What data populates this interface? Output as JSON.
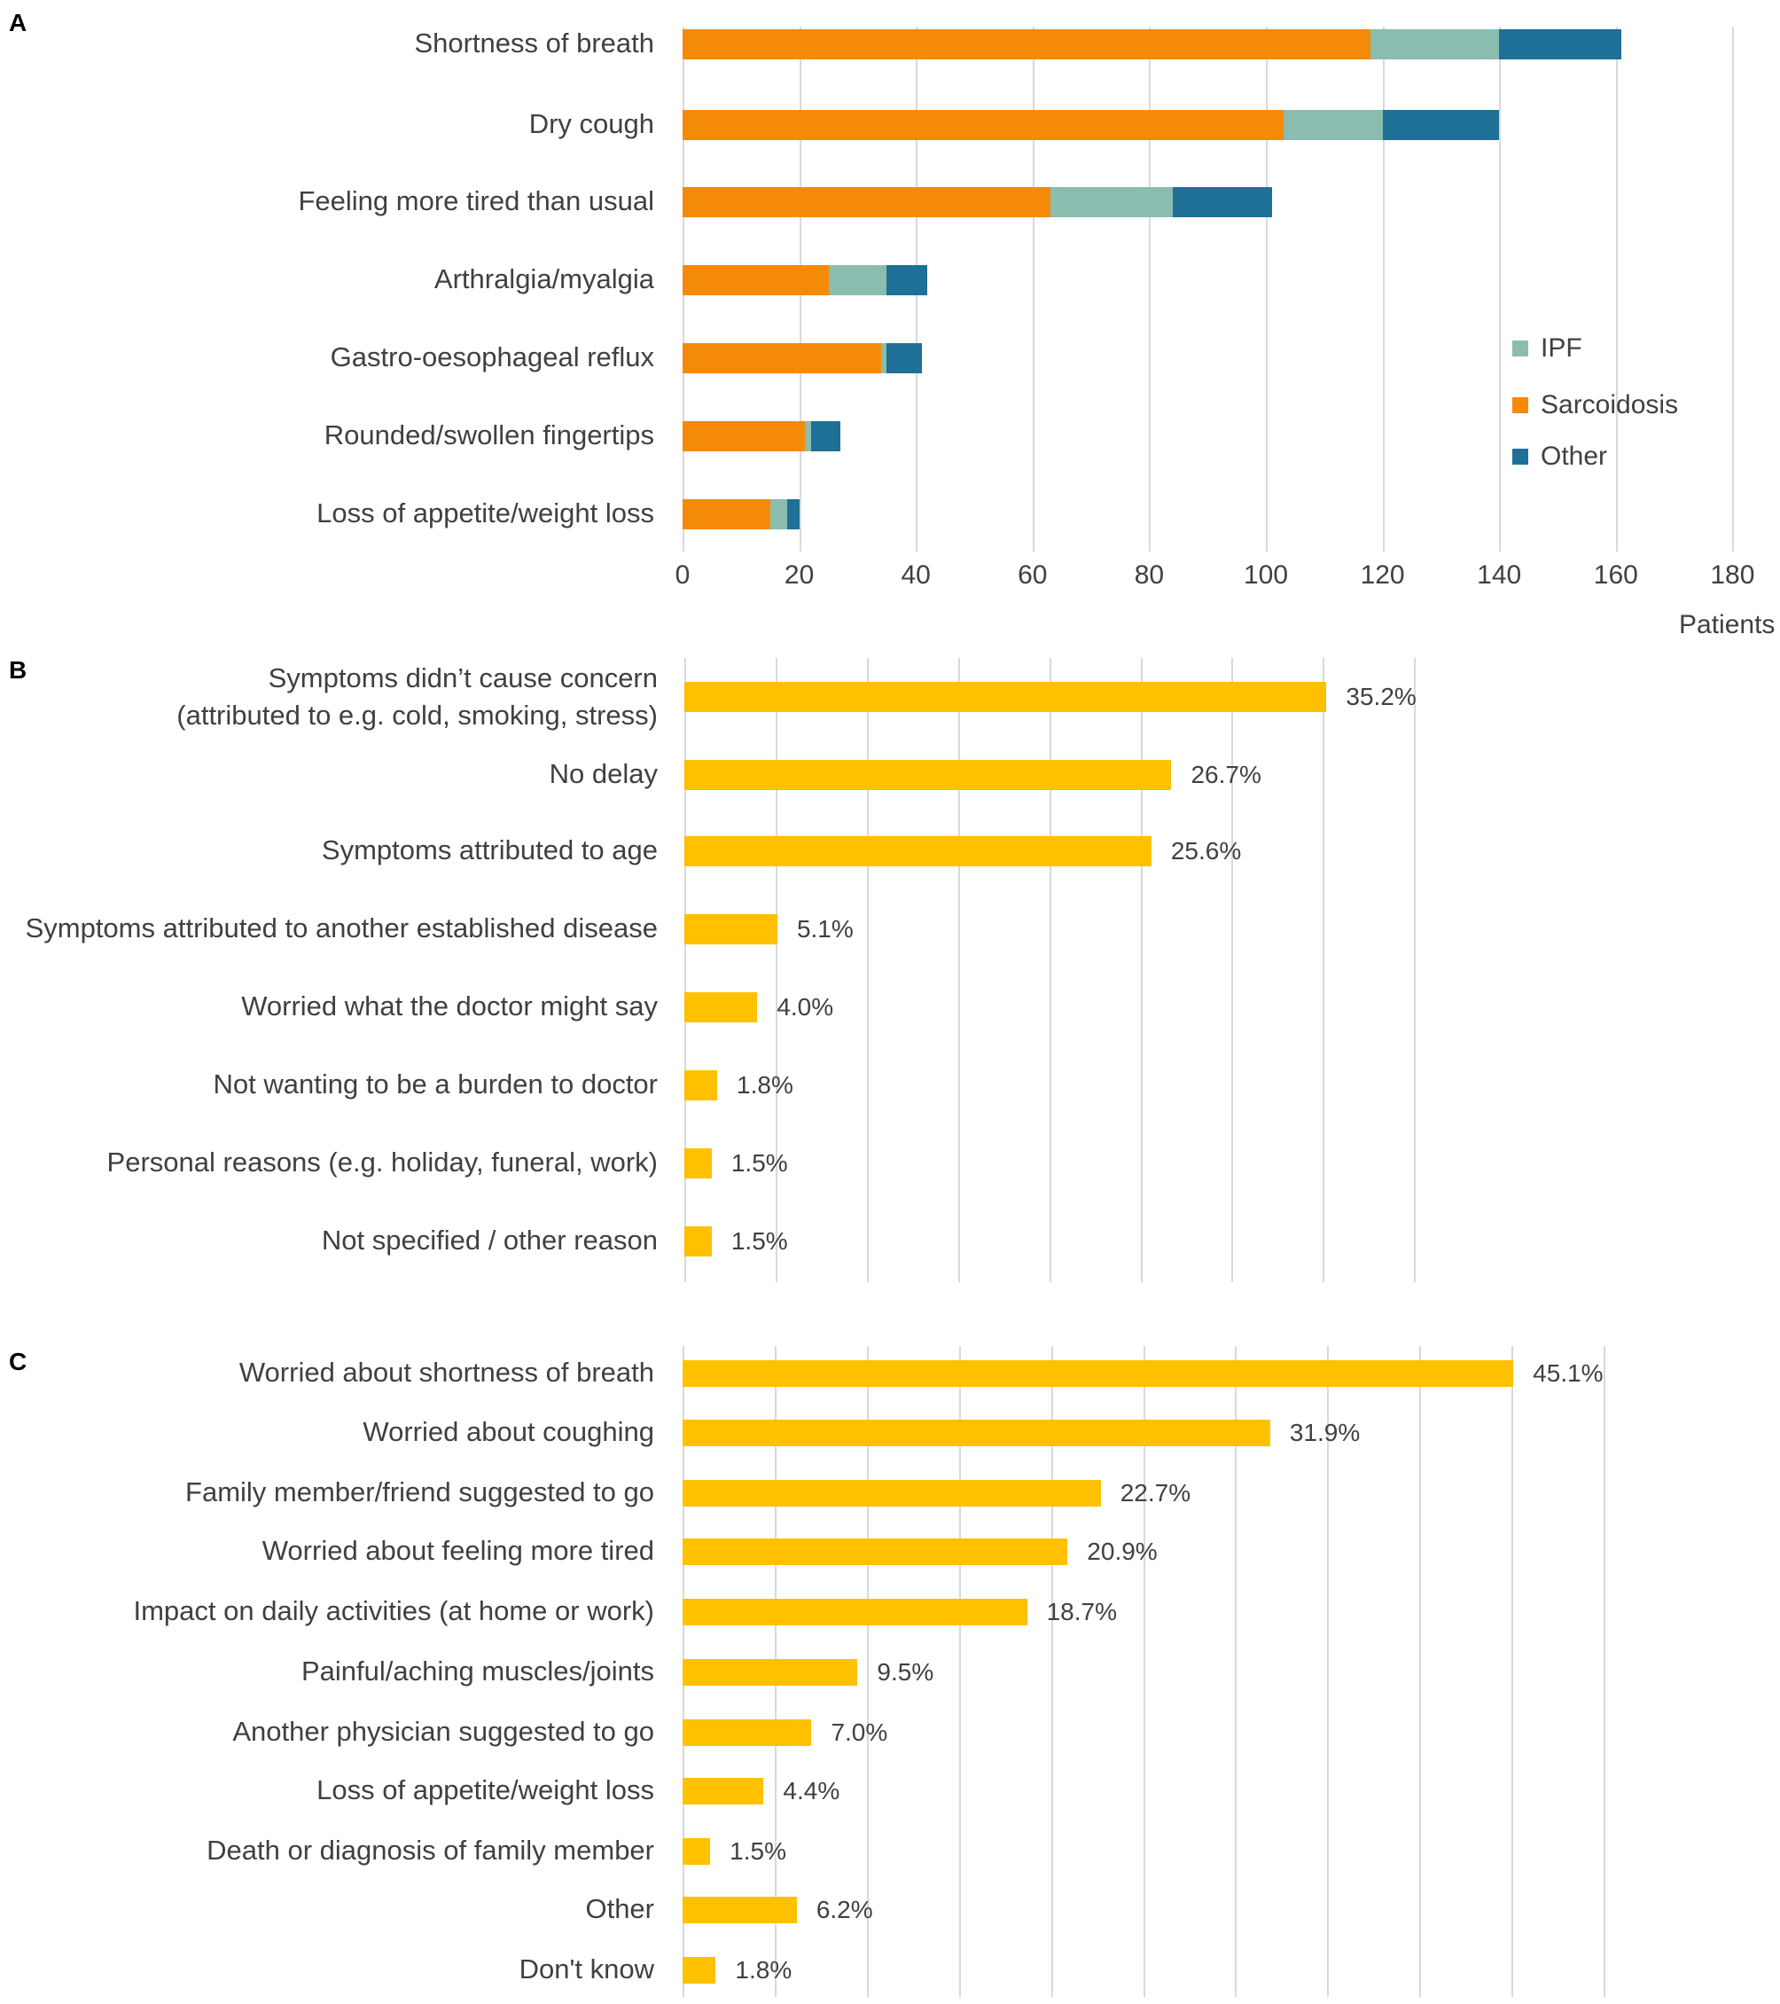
{
  "colors": {
    "ipf": "#8bbcb0",
    "sarcoidosis": "#f58a07",
    "other": "#1f7096",
    "yellow": "#ffc000",
    "grid": "#d9d9d9"
  },
  "panel_a": {
    "letter": "A"
  },
  "panel_b": {
    "letter": "B"
  },
  "panel_c": {
    "letter": "C"
  },
  "chart_data": [
    {
      "id": "A",
      "type": "bar",
      "orientation": "horizontal",
      "stacked": true,
      "categories": [
        "Shortness of breath",
        "Dry cough",
        "Feeling more tired than usual",
        "Arthralgia/myalgia",
        "Gastro-oesophageal reflux",
        "Rounded/swollen fingertips",
        "Loss of appetite/weight loss"
      ],
      "series": [
        {
          "name": "Sarcoidosis",
          "color_key": "sarcoidosis",
          "values": [
            118,
            103,
            63,
            25,
            34,
            21,
            15
          ]
        },
        {
          "name": "IPF",
          "color_key": "ipf",
          "values": [
            22,
            17,
            21,
            10,
            1,
            1,
            3
          ]
        },
        {
          "name": "Other",
          "color_key": "other",
          "values": [
            21,
            20,
            17,
            7,
            6,
            5,
            2
          ]
        }
      ],
      "legend": [
        {
          "name": "IPF",
          "color_key": "ipf"
        },
        {
          "name": "Sarcoidosis",
          "color_key": "sarcoidosis"
        },
        {
          "name": "Other",
          "color_key": "other"
        }
      ],
      "legend_position": "right",
      "xlim": [
        0,
        180
      ],
      "xticks": [
        0,
        20,
        40,
        60,
        80,
        100,
        120,
        140,
        160,
        180
      ],
      "xlabel": "Patients",
      "grid": true
    },
    {
      "id": "B",
      "type": "bar",
      "orientation": "horizontal",
      "categories": [
        [
          "Symptoms didn’t cause concern",
          "(attributed to e.g. cold, smoking, stress)"
        ],
        "No delay",
        "Symptoms attributed to age",
        "Symptoms attributed to another established disease",
        "Worried what the doctor might say",
        "Not wanting to be a burden to doctor",
        "Personal reasons (e.g. holiday, funeral, work)",
        "Not specified / other reason"
      ],
      "values": [
        35.2,
        26.7,
        25.6,
        5.1,
        4.0,
        1.8,
        1.5,
        1.5
      ],
      "value_labels": [
        "35.2%",
        "26.7%",
        "25.6%",
        "5.1%",
        "4.0%",
        "1.8%",
        "1.5%",
        "1.5%"
      ],
      "xlim": [
        0,
        40
      ],
      "grid": true,
      "color_key": "yellow"
    },
    {
      "id": "C",
      "type": "bar",
      "orientation": "horizontal",
      "categories": [
        "Worried about shortness of breath",
        "Worried about coughing",
        "Family member/friend suggested to go",
        "Worried about feeling more tired",
        "Impact on daily activities (at home or work)",
        "Painful/aching muscles/joints",
        "Another physician suggested to go",
        "Loss of appetite/weight loss",
        "Death or diagnosis of family member",
        "Other",
        "Don't know"
      ],
      "values": [
        45.1,
        31.9,
        22.7,
        20.9,
        18.7,
        9.5,
        7.0,
        4.4,
        1.5,
        6.2,
        1.8
      ],
      "value_labels": [
        "45.1%",
        "31.9%",
        "22.7%",
        "20.9%",
        "18.7%",
        "9.5%",
        "7.0%",
        "4.4%",
        "1.5%",
        "6.2%",
        "1.8%"
      ],
      "xlim": [
        0,
        50
      ],
      "grid": true,
      "color_key": "yellow"
    }
  ]
}
